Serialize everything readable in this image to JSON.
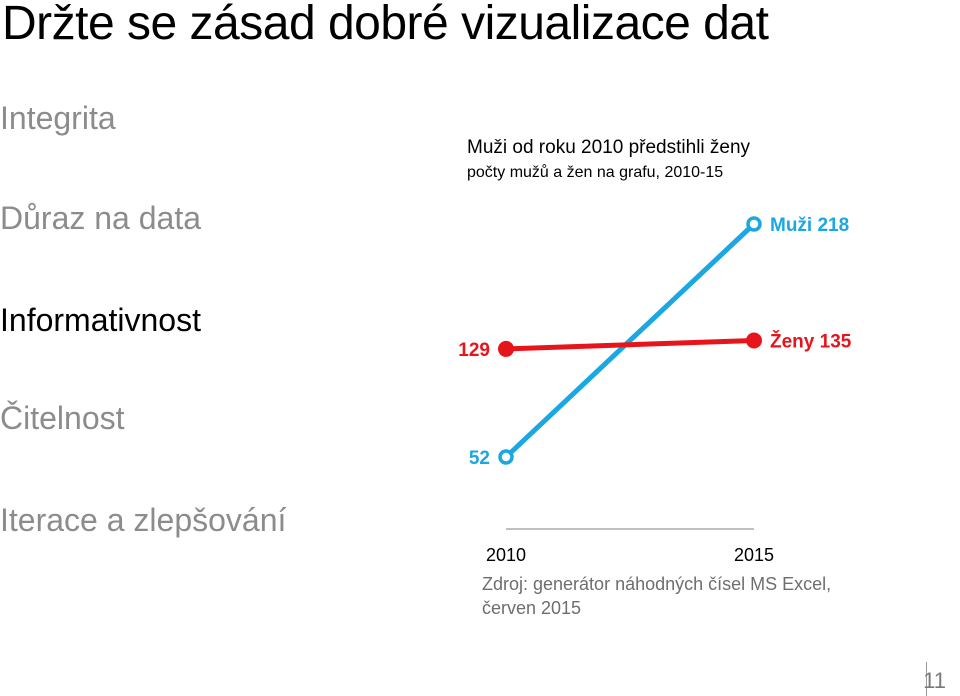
{
  "slide": {
    "title": "Držte se zásad dobré vizualizace dat",
    "page_number": "11"
  },
  "agenda": {
    "items": [
      {
        "label": "Integrita",
        "active": false
      },
      {
        "label": "Důraz na data",
        "active": false
      },
      {
        "label": "Informativnost",
        "active": true
      },
      {
        "label": "Čitelnost",
        "active": false
      },
      {
        "label": "Iterace a zlepšování",
        "active": false
      }
    ]
  },
  "chart_data": {
    "type": "line",
    "title": "Muži od roku 2010 předstihli ženy",
    "subtitle": "počty mužů a žen na grafu, 2010-15",
    "x": [
      "2010",
      "2015"
    ],
    "series": [
      {
        "name": "Muži",
        "values": [
          52,
          218
        ],
        "color": "#1aa7e2",
        "marker": "hollow-circle"
      },
      {
        "name": "Ženy",
        "values": [
          129,
          135
        ],
        "color": "#e8141b",
        "marker": "filled-circle"
      }
    ],
    "start_labels": [
      "52",
      "129"
    ],
    "end_labels": [
      "Muži 218",
      "Ženy 135"
    ],
    "ylim": [
      52,
      218
    ],
    "grid": false,
    "legend": "none",
    "source": "Zdroj: generátor náhodných čísel MS Excel, červen 2015"
  }
}
